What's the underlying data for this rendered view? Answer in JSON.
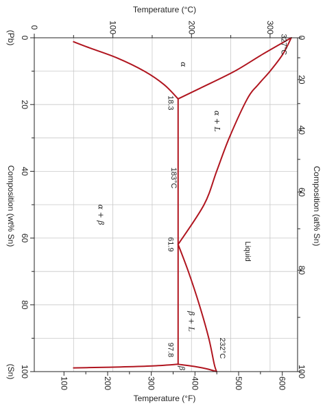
{
  "chart_data": {
    "type": "line",
    "top_axis": {
      "label": "Temperature (°C)",
      "range": [
        0,
        335
      ],
      "ticks": [
        {
          "v": 0,
          "t": "0"
        },
        {
          "v": 100,
          "t": "100"
        },
        {
          "v": 200,
          "t": "200"
        },
        {
          "v": 300,
          "t": "300"
        }
      ]
    },
    "bottom_axis": {
      "label": "Temperature (°F)",
      "ticks": [
        {
          "v": 100,
          "t": "100"
        },
        {
          "v": 200,
          "t": "200"
        },
        {
          "v": 300,
          "t": "300"
        },
        {
          "v": 400,
          "t": "400"
        },
        {
          "v": 500,
          "t": "500"
        },
        {
          "v": 600,
          "t": "600"
        }
      ]
    },
    "left_axis": {
      "label": "Composition (wt% Sn)",
      "range": [
        0,
        100
      ],
      "ticks": [
        {
          "v": 0,
          "t": "0"
        },
        {
          "v": 20,
          "t": "20"
        },
        {
          "v": 40,
          "t": "40"
        },
        {
          "v": 60,
          "t": "60"
        },
        {
          "v": 80,
          "t": "80"
        },
        {
          "v": 100,
          "t": "100"
        }
      ],
      "end_labels": {
        "start": "(Pb)",
        "end": "(Sn)"
      }
    },
    "right_axis": {
      "label": "Composition (at% Sn)",
      "ticks": [
        {
          "v": 0,
          "t": "0"
        },
        {
          "v": 20,
          "t": "20"
        },
        {
          "v": 40,
          "t": "40"
        },
        {
          "v": 60,
          "t": "60"
        },
        {
          "v": 80,
          "t": "80"
        },
        {
          "v": 100,
          "t": "100"
        }
      ]
    },
    "series": [
      {
        "id": "liquidus-pb",
        "points": [
          [
            0,
            327
          ],
          [
            5,
            316
          ],
          [
            10,
            300
          ],
          [
            14,
            285
          ],
          [
            18.3,
            271
          ],
          [
            30,
            248
          ],
          [
            40,
            232
          ],
          [
            50,
            216
          ],
          [
            61.9,
            183
          ]
        ]
      },
      {
        "id": "liquidus-sn",
        "points": [
          [
            61.9,
            183
          ],
          [
            70,
            196
          ],
          [
            80,
            210
          ],
          [
            90,
            222
          ],
          [
            97.8,
            229
          ],
          [
            100,
            232
          ]
        ]
      },
      {
        "id": "solidus-alpha",
        "points": [
          [
            0,
            327
          ],
          [
            5,
            290
          ],
          [
            10,
            255
          ],
          [
            15,
            212
          ],
          [
            18.3,
            183
          ]
        ]
      },
      {
        "id": "solvus-alpha",
        "points": [
          [
            1.2,
            50
          ],
          [
            3,
            70
          ],
          [
            6,
            105
          ],
          [
            10,
            140
          ],
          [
            14,
            165
          ],
          [
            18.3,
            183
          ]
        ]
      },
      {
        "id": "eutectic-line",
        "points": [
          [
            18.3,
            183
          ],
          [
            97.8,
            183
          ]
        ]
      },
      {
        "id": "solidus-beta",
        "points": [
          [
            97.8,
            183
          ],
          [
            98.5,
            205
          ],
          [
            99.2,
            220
          ],
          [
            100,
            232
          ]
        ]
      },
      {
        "id": "solvus-beta",
        "points": [
          [
            97.8,
            183
          ],
          [
            98.3,
            150
          ],
          [
            98.6,
            110
          ],
          [
            98.8,
            70
          ],
          [
            98.9,
            50
          ]
        ]
      }
    ],
    "annotations": [
      {
        "id": "label-327c",
        "text": "327°C",
        "x": 2,
        "y": 318
      },
      {
        "id": "label-alpha",
        "text": "α",
        "x": 8,
        "y": 190
      },
      {
        "id": "label-18-3",
        "text": "18.3",
        "x": 19.5,
        "y": 174
      },
      {
        "id": "label-alpha-l",
        "text": "α + L",
        "x": 25,
        "y": 233
      },
      {
        "id": "label-183c",
        "text": "183°C",
        "x": 42,
        "y": 178
      },
      {
        "id": "label-alpha-beta",
        "text": "α + β",
        "x": 53,
        "y": 85
      },
      {
        "id": "label-61-9",
        "text": "61.9",
        "x": 61.9,
        "y": 174
      },
      {
        "id": "label-liquid",
        "text": "Liquid",
        "x": 64,
        "y": 272
      },
      {
        "id": "label-beta-l",
        "text": "β + L",
        "x": 85,
        "y": 200
      },
      {
        "id": "label-232c",
        "text": "232°C",
        "x": 93,
        "y": 240
      },
      {
        "id": "label-97-8",
        "text": "97.8",
        "x": 93.5,
        "y": 174
      },
      {
        "id": "label-beta",
        "text": "β",
        "x": 99,
        "y": 188
      }
    ],
    "grid": true
  }
}
